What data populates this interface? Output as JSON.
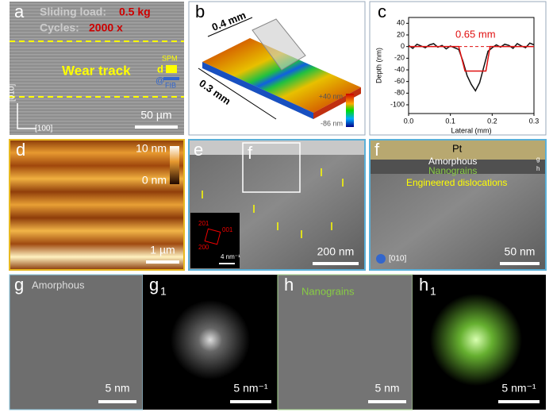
{
  "panel_a": {
    "label": "a",
    "load_text": "Sliding load:",
    "load_value": "0.5 kg",
    "cycles_text": "Cycles:",
    "cycles_value": "2000 x",
    "track": "Wear track",
    "spm": "SPM",
    "d": "d",
    "at": "@",
    "fib": "FIB",
    "axis_y": "[010]",
    "axis_x": "[100]",
    "scale": "50 µm"
  },
  "panel_b": {
    "label": "b",
    "length": "0.4 mm",
    "width": "0.3 mm",
    "color_max": "+40 nm",
    "color_min": "-86 nm"
  },
  "chart_data": {
    "type": "line",
    "label": "c",
    "xlabel": "Lateral (mm)",
    "ylabel": "Depth (nm)",
    "annotation": "0.65 mm",
    "xlim": [
      0,
      0.3
    ],
    "xticks": [
      {
        "value": 0,
        "label": "0.0"
      },
      {
        "value": 0.1,
        "label": "0.1"
      },
      {
        "value": 0.2,
        "label": "0.2"
      },
      {
        "value": 0.3,
        "label": "0.3"
      }
    ],
    "ylim": [
      -115,
      50
    ],
    "yticks": [
      40,
      20,
      0,
      -20,
      -40,
      -60,
      -80,
      -100
    ],
    "reference_line": 0,
    "series": [
      {
        "color": "#111111",
        "x": [
          0,
          0.01,
          0.02,
          0.03,
          0.04,
          0.05,
          0.06,
          0.07,
          0.08,
          0.09,
          0.1,
          0.11,
          0.12,
          0.13,
          0.14,
          0.15,
          0.16,
          0.17,
          0.18,
          0.19,
          0.2,
          0.21,
          0.22,
          0.23,
          0.24,
          0.25,
          0.26,
          0.27,
          0.28,
          0.29,
          0.3
        ],
        "values": [
          2,
          -3,
          4,
          1,
          -2,
          3,
          5,
          -1,
          2,
          -4,
          1,
          -2,
          -5,
          -25,
          -50,
          -65,
          -76,
          -62,
          -35,
          -8,
          -2,
          3,
          -1,
          4,
          2,
          -3,
          5,
          1,
          -2,
          6,
          3
        ]
      },
      {
        "color": "#e01010",
        "x": [
          0,
          0.12,
          0.135,
          0.185,
          0.195,
          0.3
        ],
        "values": [
          0,
          0,
          -42,
          -42,
          0,
          0
        ]
      }
    ]
  },
  "panel_d": {
    "label": "d",
    "color_max": "10 nm",
    "color_min": "0 nm",
    "scale": "1 µm"
  },
  "panel_e": {
    "label": "e",
    "inset_box": "f",
    "spot_1": "201",
    "spot_2": "001",
    "spot_3": "200",
    "inset_scale": "4 nm⁻¹",
    "scale": "200 nm"
  },
  "panel_f": {
    "label": "f",
    "pt": "Pt",
    "amorphous": "Amorphous",
    "nanograins": "Nanograins",
    "dislocations": "Engineered dislocations",
    "mark_g": "g",
    "mark_h": "h",
    "zone": "[010]",
    "scale": "50 nm"
  },
  "panel_g": {
    "label": "g",
    "title": "Amorphous",
    "scale": "5 nm"
  },
  "panel_g1": {
    "label": "g",
    "sub": "1",
    "scale": "5 nm⁻¹"
  },
  "panel_h": {
    "label": "h",
    "title": "Nanograins",
    "scale": "5 nm"
  },
  "panel_h1": {
    "label": "h",
    "sub": "1",
    "scale": "5 nm⁻¹"
  }
}
